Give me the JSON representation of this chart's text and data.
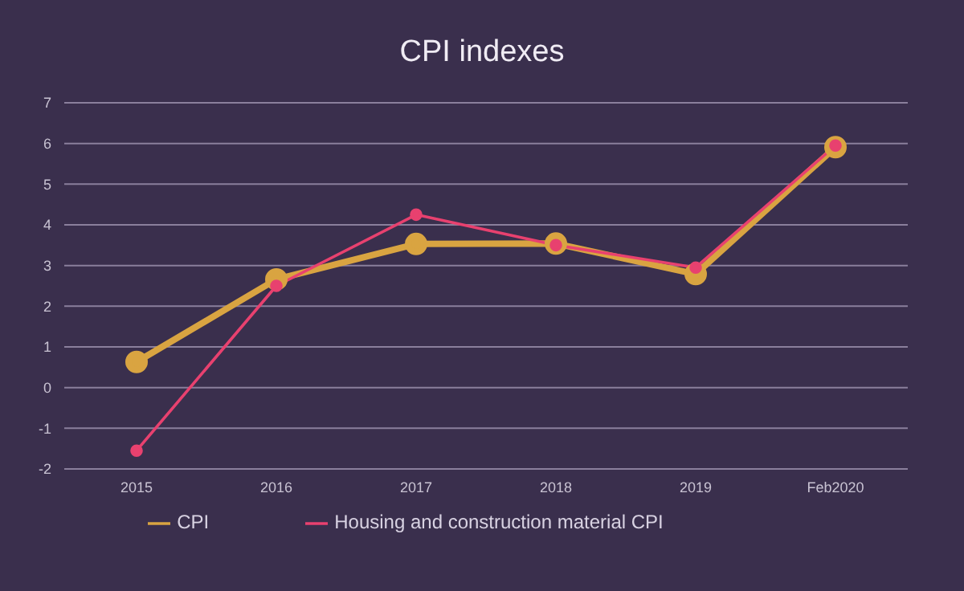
{
  "chart_data": {
    "type": "line",
    "title": "CPI indexes",
    "categories": [
      "2015",
      "2016",
      "2017",
      "2018",
      "2019",
      "Feb2020"
    ],
    "series": [
      {
        "name": "CPI",
        "color": "#d9a441",
        "values": [
          0.63,
          2.66,
          3.53,
          3.54,
          2.79,
          5.91
        ]
      },
      {
        "name": "Housing and construction material CPI",
        "color": "#e8416f",
        "values": [
          -1.55,
          2.5,
          4.25,
          3.5,
          2.95,
          5.95
        ]
      }
    ],
    "ylim": [
      -2,
      7
    ],
    "yticks": [
      -2,
      -1,
      0,
      1,
      2,
      3,
      4,
      5,
      6,
      7
    ],
    "grid": "y",
    "legend": "bottom",
    "marker": "circle"
  }
}
